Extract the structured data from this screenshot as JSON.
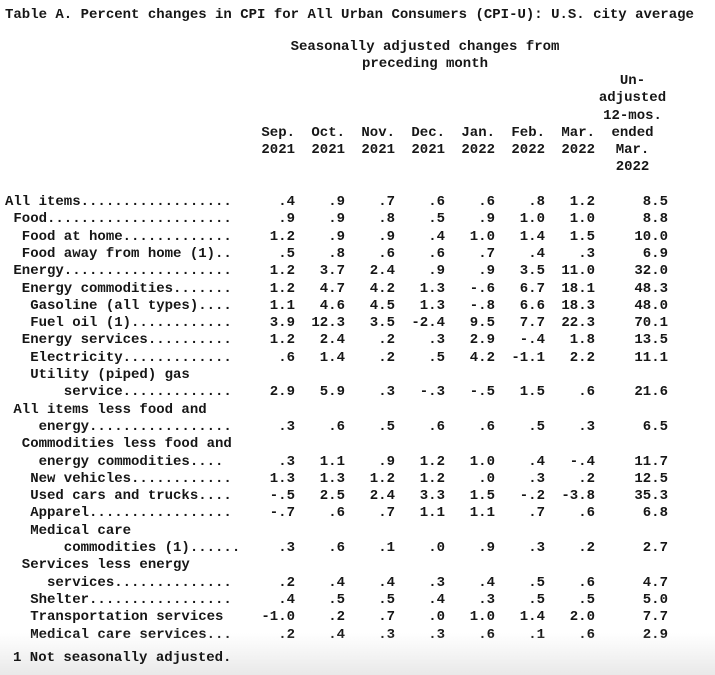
{
  "title": "Table A. Percent changes in CPI for All Urban Consumers (CPI-U): U.S. city average",
  "subtitle_line1": "Seasonally adjusted changes from",
  "subtitle_line2": "preceding month",
  "footnote": "1 Not seasonally adjusted.",
  "table": {
    "unadjusted_header_lines": [
      "Un-",
      "adjusted",
      "12-mos.",
      "ended",
      "Mar.",
      "2022"
    ],
    "month_headers": [
      "Sep.",
      "Oct.",
      "Nov.",
      "Dec.",
      "Jan.",
      "Feb.",
      "Mar."
    ],
    "year_headers": [
      "2021",
      "2021",
      "2021",
      "2021",
      "2022",
      "2022",
      "2022"
    ],
    "rows": [
      {
        "label": "All items..................",
        "values": [
          ".4",
          ".9",
          ".7",
          ".6",
          ".6",
          ".8",
          "1.2",
          "8.5"
        ]
      },
      {
        "label": " Food......................",
        "values": [
          ".9",
          ".9",
          ".8",
          ".5",
          ".9",
          "1.0",
          "1.0",
          "8.8"
        ]
      },
      {
        "label": "  Food at home.............",
        "values": [
          "1.2",
          ".9",
          ".9",
          ".4",
          "1.0",
          "1.4",
          "1.5",
          "10.0"
        ]
      },
      {
        "label": "  Food away from home (1)..",
        "values": [
          ".5",
          ".8",
          ".6",
          ".6",
          ".7",
          ".4",
          ".3",
          "6.9"
        ]
      },
      {
        "label": " Energy....................",
        "values": [
          "1.2",
          "3.7",
          "2.4",
          ".9",
          ".9",
          "3.5",
          "11.0",
          "32.0"
        ]
      },
      {
        "label": "  Energy commodities.......",
        "values": [
          "1.2",
          "4.7",
          "4.2",
          "1.3",
          "-.6",
          "6.7",
          "18.1",
          "48.3"
        ]
      },
      {
        "label": "   Gasoline (all types)....",
        "values": [
          "1.1",
          "4.6",
          "4.5",
          "1.3",
          "-.8",
          "6.6",
          "18.3",
          "48.0"
        ]
      },
      {
        "label": "   Fuel oil (1)............",
        "values": [
          "3.9",
          "12.3",
          "3.5",
          "-2.4",
          "9.5",
          "7.7",
          "22.3",
          "70.1"
        ]
      },
      {
        "label": "  Energy services..........",
        "values": [
          "1.2",
          "2.4",
          ".2",
          ".3",
          "2.9",
          "-.4",
          "1.8",
          "13.5"
        ]
      },
      {
        "label": "   Electricity.............",
        "values": [
          ".6",
          "1.4",
          ".2",
          ".5",
          "4.2",
          "-1.1",
          "2.2",
          "11.1"
        ]
      },
      {
        "label": "   Utility (piped) gas",
        "values": []
      },
      {
        "label": "       service.............",
        "values": [
          "2.9",
          "5.9",
          ".3",
          "-.3",
          "-.5",
          "1.5",
          ".6",
          "21.6"
        ]
      },
      {
        "label": " All items less food and",
        "values": []
      },
      {
        "label": "    energy.................",
        "values": [
          ".3",
          ".6",
          ".5",
          ".6",
          ".6",
          ".5",
          ".3",
          "6.5"
        ]
      },
      {
        "label": "  Commodities less food and",
        "values": []
      },
      {
        "label": "    energy commodities....",
        "values": [
          ".3",
          "1.1",
          ".9",
          "1.2",
          "1.0",
          ".4",
          "-.4",
          "11.7"
        ]
      },
      {
        "label": "   New vehicles............",
        "values": [
          "1.3",
          "1.3",
          "1.2",
          "1.2",
          ".0",
          ".3",
          ".2",
          "12.5"
        ]
      },
      {
        "label": "   Used cars and trucks....",
        "values": [
          "-.5",
          "2.5",
          "2.4",
          "3.3",
          "1.5",
          "-.2",
          "-3.8",
          "35.3"
        ]
      },
      {
        "label": "   Apparel.................",
        "values": [
          "-.7",
          ".6",
          ".7",
          "1.1",
          "1.1",
          ".7",
          ".6",
          "6.8"
        ]
      },
      {
        "label": "   Medical care",
        "values": []
      },
      {
        "label": "       commodities (1)......",
        "values": [
          ".3",
          ".6",
          ".1",
          ".0",
          ".9",
          ".3",
          ".2",
          "2.7"
        ]
      },
      {
        "label": "  Services less energy",
        "values": []
      },
      {
        "label": "     services..............",
        "values": [
          ".2",
          ".4",
          ".4",
          ".3",
          ".4",
          ".5",
          ".6",
          "4.7"
        ]
      },
      {
        "label": "   Shelter.................",
        "values": [
          ".4",
          ".5",
          ".5",
          ".4",
          ".3",
          ".5",
          ".5",
          "5.0"
        ]
      },
      {
        "label": "   Transportation services",
        "values": [
          "-1.0",
          ".2",
          ".7",
          ".0",
          "1.0",
          "1.4",
          "2.0",
          "7.7"
        ]
      },
      {
        "label": "   Medical care services...",
        "values": [
          ".2",
          ".4",
          ".3",
          ".3",
          ".6",
          ".1",
          ".6",
          "2.9"
        ]
      }
    ]
  }
}
